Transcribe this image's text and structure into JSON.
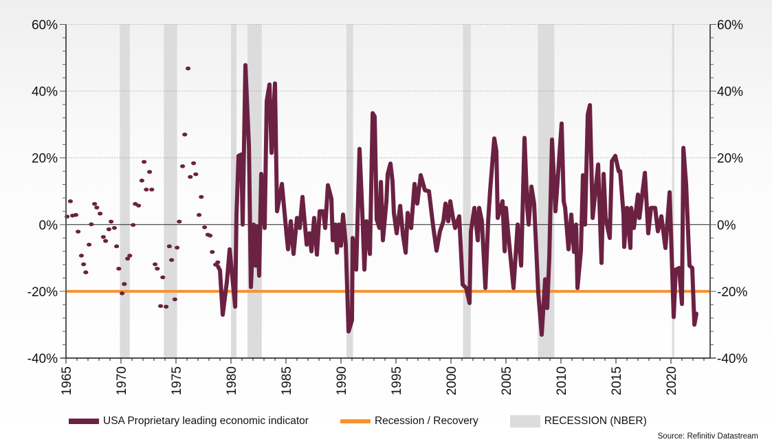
{
  "colors": {
    "indicator": "#6b2142",
    "threshold": "#f7922e",
    "recession_band": "#dcdcdc",
    "zero_line": "#222222",
    "grid": "#999999"
  },
  "legend": [
    {
      "label": "USA Proprietary leading economic indicator",
      "color": "#6b2142"
    },
    {
      "label": "Recession / Recovery",
      "color": "#f7922e"
    },
    {
      "label": "RECESSION (NBER)",
      "color": "#dcdcdc"
    }
  ],
  "source": "Source: Refinitiv Datastream",
  "chart_data": {
    "type": "line",
    "title": "",
    "xlabel": "",
    "ylabel": "",
    "xlim": [
      1965,
      2023.5
    ],
    "ylim": [
      -40,
      60
    ],
    "x_ticks": [
      "1965",
      "1970",
      "1975",
      "1980",
      "1985",
      "1990",
      "1995",
      "2000",
      "2005",
      "2010",
      "2015",
      "2020"
    ],
    "y_ticks": [
      "60%",
      "40%",
      "20%",
      "0%",
      "-20%",
      "-40%"
    ],
    "y_tick_values": [
      60,
      40,
      20,
      0,
      -20,
      -40
    ],
    "y_axes": [
      "left",
      "right"
    ],
    "grid": "horizontal dotted at major y ticks",
    "legend_placement": "bottom",
    "recession_threshold": -20,
    "recession_bands": [
      [
        1969.9,
        1970.8
      ],
      [
        1973.9,
        1975.1
      ],
      [
        1980.0,
        1980.5
      ],
      [
        1981.5,
        1982.8
      ],
      [
        1990.5,
        1991.1
      ],
      [
        2001.1,
        2001.8
      ],
      [
        2007.9,
        2009.4
      ],
      [
        2020.1,
        2020.3
      ]
    ],
    "series": [
      {
        "name": "USA Proprietary leading economic indicator",
        "markers": [
          [
            1965.1,
            2.4
          ],
          [
            1965.4,
            7.0
          ],
          [
            1965.6,
            2.7
          ],
          [
            1965.9,
            2.9
          ],
          [
            1966.1,
            -2.1
          ],
          [
            1966.4,
            -9.3
          ],
          [
            1966.6,
            -11.9
          ],
          [
            1966.8,
            -14.3
          ],
          [
            1967.1,
            -6.0
          ],
          [
            1967.3,
            0.1
          ],
          [
            1967.6,
            6.2
          ],
          [
            1967.8,
            5.1
          ],
          [
            1968.1,
            3.3
          ],
          [
            1968.4,
            -3.7
          ],
          [
            1968.6,
            -4.9
          ],
          [
            1968.9,
            -1.4
          ],
          [
            1969.1,
            0.9
          ],
          [
            1969.4,
            -1.0
          ],
          [
            1969.6,
            -6.5
          ],
          [
            1969.8,
            -13.2
          ],
          [
            1970.1,
            -20.6
          ],
          [
            1970.3,
            -17.8
          ],
          [
            1970.6,
            -10.2
          ],
          [
            1970.8,
            -9.3
          ],
          [
            1971.1,
            -0.1
          ],
          [
            1971.3,
            6.2
          ],
          [
            1971.6,
            5.7
          ],
          [
            1971.9,
            13.2
          ],
          [
            1972.1,
            18.8
          ],
          [
            1972.3,
            10.5
          ],
          [
            1972.6,
            15.8
          ],
          [
            1972.8,
            10.5
          ],
          [
            1973.1,
            -11.9
          ],
          [
            1973.3,
            -13.2
          ],
          [
            1973.6,
            -24.4
          ],
          [
            1973.8,
            -15.8
          ],
          [
            1974.1,
            -24.6
          ],
          [
            1974.4,
            -6.5
          ],
          [
            1974.6,
            -10.6
          ],
          [
            1974.9,
            -22.4
          ],
          [
            1975.1,
            -6.9
          ],
          [
            1975.3,
            0.9
          ],
          [
            1975.6,
            17.5
          ],
          [
            1975.8,
            27.0
          ],
          [
            1976.1,
            46.8
          ],
          [
            1976.3,
            14.3
          ],
          [
            1976.6,
            18.4
          ],
          [
            1976.8,
            15.1
          ],
          [
            1977.1,
            2.9
          ],
          [
            1977.3,
            8.3
          ],
          [
            1977.6,
            -0.8
          ],
          [
            1977.9,
            -3.0
          ],
          [
            1978.1,
            -3.3
          ],
          [
            1978.3,
            -8.2
          ],
          [
            1978.6,
            -12.0
          ],
          [
            1978.8,
            -11.3
          ]
        ],
        "line": [
          [
            1978.81,
            -12.5
          ],
          [
            1979.0,
            -13.7
          ],
          [
            1979.25,
            -27
          ],
          [
            1979.63,
            -17
          ],
          [
            1979.88,
            -7.4
          ],
          [
            1980.38,
            -24.6
          ],
          [
            1980.5,
            3
          ],
          [
            1980.69,
            20.6
          ],
          [
            1980.94,
            21
          ],
          [
            1981.06,
            0
          ],
          [
            1981.31,
            47.8
          ],
          [
            1981.63,
            23.5
          ],
          [
            1981.81,
            -18.7
          ],
          [
            1982.06,
            0
          ],
          [
            1982.25,
            -12.3
          ],
          [
            1982.38,
            -0.5
          ],
          [
            1982.56,
            -15.3
          ],
          [
            1982.75,
            15.2
          ],
          [
            1983.06,
            -1
          ],
          [
            1983.25,
            37
          ],
          [
            1983.5,
            42
          ],
          [
            1983.69,
            21.5
          ],
          [
            1984.0,
            42.3
          ],
          [
            1984.19,
            4
          ],
          [
            1984.63,
            12.2
          ],
          [
            1985.06,
            -3.3
          ],
          [
            1985.19,
            -7.4
          ],
          [
            1985.44,
            1
          ],
          [
            1985.69,
            -8.8
          ],
          [
            1986.0,
            2
          ],
          [
            1986.25,
            -1
          ],
          [
            1986.5,
            8.3
          ],
          [
            1986.88,
            -6
          ],
          [
            1987.13,
            -2.6
          ],
          [
            1987.31,
            -8
          ],
          [
            1987.56,
            2
          ],
          [
            1987.81,
            -9
          ],
          [
            1988.06,
            4
          ],
          [
            1988.38,
            4
          ],
          [
            1988.56,
            -1
          ],
          [
            1988.81,
            11.8
          ],
          [
            1989.13,
            7.7
          ],
          [
            1989.25,
            -4.7
          ],
          [
            1989.5,
            0
          ],
          [
            1989.63,
            -8.4
          ],
          [
            1989.81,
            0
          ],
          [
            1990.0,
            -6.3
          ],
          [
            1990.19,
            3
          ],
          [
            1990.44,
            -6
          ],
          [
            1990.69,
            -32
          ],
          [
            1991.0,
            -28.7
          ],
          [
            1991.06,
            -4
          ],
          [
            1991.38,
            -13.5
          ],
          [
            1991.69,
            22.7
          ],
          [
            1991.94,
            4
          ],
          [
            1992.13,
            -13.5
          ],
          [
            1992.31,
            1
          ],
          [
            1992.63,
            -8.8
          ],
          [
            1992.88,
            33.4
          ],
          [
            1993.06,
            32.4
          ],
          [
            1993.25,
            1.5
          ],
          [
            1993.5,
            -1
          ],
          [
            1993.63,
            12.8
          ],
          [
            1993.81,
            -4.7
          ],
          [
            1994.13,
            7
          ],
          [
            1994.25,
            15.2
          ],
          [
            1994.5,
            18.3
          ],
          [
            1994.69,
            13
          ],
          [
            1994.81,
            3.5
          ],
          [
            1995.06,
            -2.6
          ],
          [
            1995.38,
            5.6
          ],
          [
            1995.63,
            -3
          ],
          [
            1995.88,
            -8.4
          ],
          [
            1996.06,
            3.5
          ],
          [
            1996.38,
            -1
          ],
          [
            1996.69,
            12.2
          ],
          [
            1996.94,
            6.3
          ],
          [
            1997.25,
            14.8
          ],
          [
            1997.63,
            10.3
          ],
          [
            1998.0,
            10
          ],
          [
            1998.38,
            -0.5
          ],
          [
            1998.69,
            -7.8
          ],
          [
            1999.0,
            -2
          ],
          [
            1999.31,
            1
          ],
          [
            1999.5,
            6.3
          ],
          [
            1999.75,
            1
          ],
          [
            1999.94,
            7
          ],
          [
            2000.19,
            2
          ],
          [
            2000.38,
            -1
          ],
          [
            2000.75,
            2.5
          ],
          [
            2001.06,
            -18
          ],
          [
            2001.38,
            -19
          ],
          [
            2001.69,
            -23.5
          ],
          [
            2001.81,
            -2
          ],
          [
            2002.13,
            5
          ],
          [
            2002.44,
            -4.7
          ],
          [
            2002.56,
            5
          ],
          [
            2002.81,
            1
          ],
          [
            2003.13,
            -19
          ],
          [
            2003.38,
            1
          ],
          [
            2003.56,
            10.3
          ],
          [
            2003.94,
            25.8
          ],
          [
            2004.13,
            22
          ],
          [
            2004.25,
            2
          ],
          [
            2004.69,
            7
          ],
          [
            2004.88,
            -8
          ],
          [
            2005.0,
            5
          ],
          [
            2005.19,
            -2
          ],
          [
            2005.69,
            -19
          ],
          [
            2006.06,
            0
          ],
          [
            2006.38,
            -12.3
          ],
          [
            2006.69,
            26
          ],
          [
            2006.94,
            5
          ],
          [
            2007.06,
            0
          ],
          [
            2007.31,
            11.4
          ],
          [
            2007.56,
            6.3
          ],
          [
            2007.94,
            -20.5
          ],
          [
            2008.25,
            -33
          ],
          [
            2008.56,
            -16.4
          ],
          [
            2008.75,
            -25
          ],
          [
            2008.94,
            -10
          ],
          [
            2009.19,
            25.5
          ],
          [
            2009.5,
            4
          ],
          [
            2010.06,
            30.3
          ],
          [
            2010.25,
            7
          ],
          [
            2010.38,
            5
          ],
          [
            2010.69,
            -7.4
          ],
          [
            2010.94,
            3
          ],
          [
            2011.19,
            -8.2
          ],
          [
            2011.38,
            0
          ],
          [
            2011.5,
            -19
          ],
          [
            2011.81,
            -8
          ],
          [
            2012.0,
            14.8
          ],
          [
            2012.19,
            0
          ],
          [
            2012.44,
            33
          ],
          [
            2012.63,
            35.8
          ],
          [
            2012.88,
            2
          ],
          [
            2013.38,
            18
          ],
          [
            2013.69,
            -11.5
          ],
          [
            2013.88,
            15.2
          ],
          [
            2014.06,
            2
          ],
          [
            2014.44,
            -4
          ],
          [
            2014.63,
            19
          ],
          [
            2014.94,
            20.6
          ],
          [
            2015.25,
            16
          ],
          [
            2015.38,
            16
          ],
          [
            2015.69,
            3
          ],
          [
            2015.75,
            -6.7
          ],
          [
            2016.0,
            5
          ],
          [
            2016.31,
            -7
          ],
          [
            2016.38,
            5
          ],
          [
            2016.63,
            -1
          ],
          [
            2017.0,
            9
          ],
          [
            2017.13,
            2
          ],
          [
            2017.63,
            15.5
          ],
          [
            2017.94,
            -2.6
          ],
          [
            2018.19,
            5
          ],
          [
            2018.56,
            5
          ],
          [
            2018.81,
            -2
          ],
          [
            2019.13,
            2.5
          ],
          [
            2019.5,
            -7
          ],
          [
            2019.88,
            9.7
          ],
          [
            2020.25,
            -27.7
          ],
          [
            2020.44,
            -13.5
          ],
          [
            2020.75,
            -13
          ],
          [
            2021.0,
            -23.8
          ],
          [
            2021.13,
            23
          ],
          [
            2021.38,
            12
          ],
          [
            2021.69,
            -12.3
          ],
          [
            2021.94,
            -13
          ],
          [
            2022.13,
            -30
          ],
          [
            2022.31,
            -26.7
          ]
        ]
      }
    ]
  }
}
